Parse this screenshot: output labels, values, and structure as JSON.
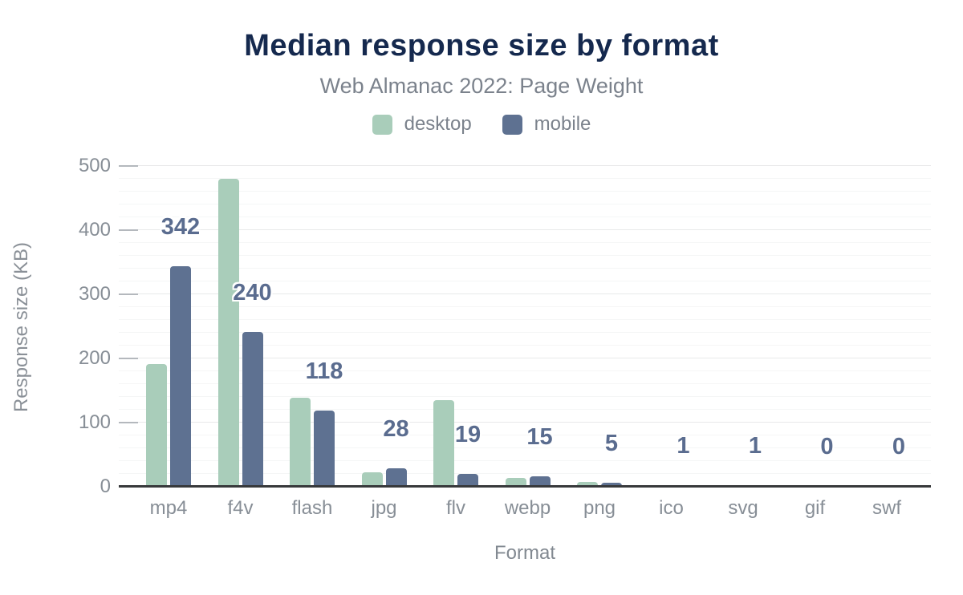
{
  "header": {
    "title": "Median response size by format",
    "subtitle": "Web Almanac 2022: Page Weight"
  },
  "legend": {
    "items": [
      {
        "label": "desktop",
        "color": "#a9cdba"
      },
      {
        "label": "mobile",
        "color": "#5e7191"
      }
    ]
  },
  "colors": {
    "title": "#15294e",
    "subtitle_text": "#7b828c",
    "axis_text": "#878e96",
    "data_label": "#5a6c8f",
    "axis_line": "#37393b",
    "desktop_series": "#a9cdba",
    "mobile_series": "#5e7191"
  },
  "chart_data": {
    "type": "bar",
    "title": "Median response size by format",
    "subtitle": "Web Almanac 2022: Page Weight",
    "xlabel": "Format",
    "ylabel": "Response size (KB)",
    "categories": [
      "mp4",
      "f4v",
      "flash",
      "jpg",
      "flv",
      "webp",
      "png",
      "ico",
      "svg",
      "gif",
      "swf"
    ],
    "series": [
      {
        "name": "desktop",
        "color": "#a9cdba",
        "values": [
          190,
          479,
          138,
          21,
          134,
          12,
          6,
          1,
          1,
          0,
          0
        ]
      },
      {
        "name": "mobile",
        "color": "#5e7191",
        "values": [
          342,
          240,
          118,
          28,
          19,
          15,
          5,
          1,
          1,
          0,
          0
        ]
      }
    ],
    "data_labels": {
      "series": "mobile",
      "values": [
        "342",
        "240",
        "118",
        "28",
        "19",
        "15",
        "5",
        "1",
        "1",
        "0",
        "0"
      ]
    },
    "ylim": [
      0,
      500
    ],
    "yticks": [
      0,
      100,
      200,
      300,
      400,
      500
    ],
    "minor_grid_step": 20,
    "grid": true,
    "legend_position": "top"
  }
}
